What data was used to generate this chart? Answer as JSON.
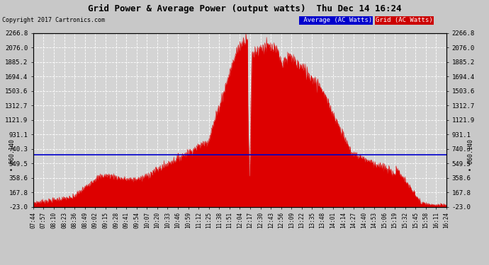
{
  "title": "Grid Power & Average Power (output watts)  Thu Dec 14 16:24",
  "copyright": "Copyright 2017 Cartronics.com",
  "background_color": "#c8c8c8",
  "plot_bg_color": "#d4d4d4",
  "grid_color": "#ffffff",
  "avg_value": 660.14,
  "avg_label": "660.140",
  "yticks": [
    -23.0,
    167.8,
    358.6,
    549.5,
    740.3,
    931.1,
    1121.9,
    1312.7,
    1503.6,
    1694.4,
    1885.2,
    2076.0,
    2266.8
  ],
  "fill_color": "#dd0000",
  "avg_line_color": "#0000cc",
  "x_labels": [
    "07:44",
    "07:57",
    "08:10",
    "08:23",
    "08:36",
    "08:49",
    "09:02",
    "09:15",
    "09:28",
    "09:41",
    "09:54",
    "10:07",
    "10:20",
    "10:33",
    "10:46",
    "10:59",
    "11:12",
    "11:25",
    "11:38",
    "11:51",
    "12:04",
    "12:17",
    "12:30",
    "12:43",
    "12:56",
    "13:09",
    "13:22",
    "13:35",
    "13:48",
    "14:01",
    "14:14",
    "14:27",
    "14:40",
    "14:53",
    "15:06",
    "15:19",
    "15:32",
    "15:45",
    "15:58",
    "16:11",
    "16:24"
  ]
}
